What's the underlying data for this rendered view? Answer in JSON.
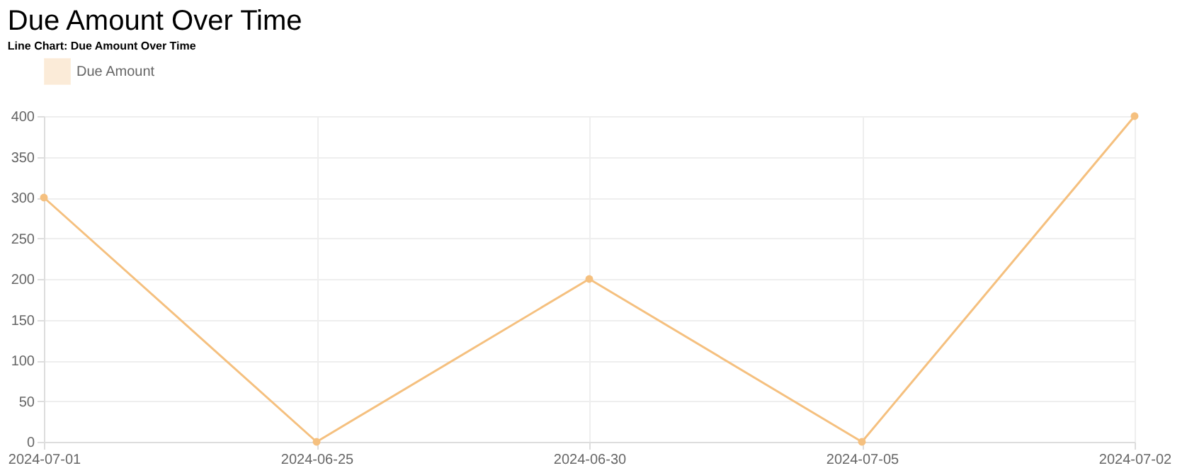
{
  "chart_data": {
    "type": "line",
    "subtitle": "Line Chart: Due Amount Over Time",
    "title": "Due Amount Over Time",
    "categories": [
      "2024-07-01",
      "2024-06-25",
      "2024-06-30",
      "2024-07-05",
      "2024-07-02"
    ],
    "series": [
      {
        "name": "Due Amount",
        "color": "#f5c07f",
        "values": [
          300,
          0,
          200,
          0,
          400
        ]
      }
    ],
    "ylim": [
      0,
      400
    ],
    "yticks": [
      0,
      50,
      100,
      150,
      200,
      250,
      300,
      350,
      400
    ],
    "grid": true,
    "legend": "top",
    "marker": "circle"
  }
}
